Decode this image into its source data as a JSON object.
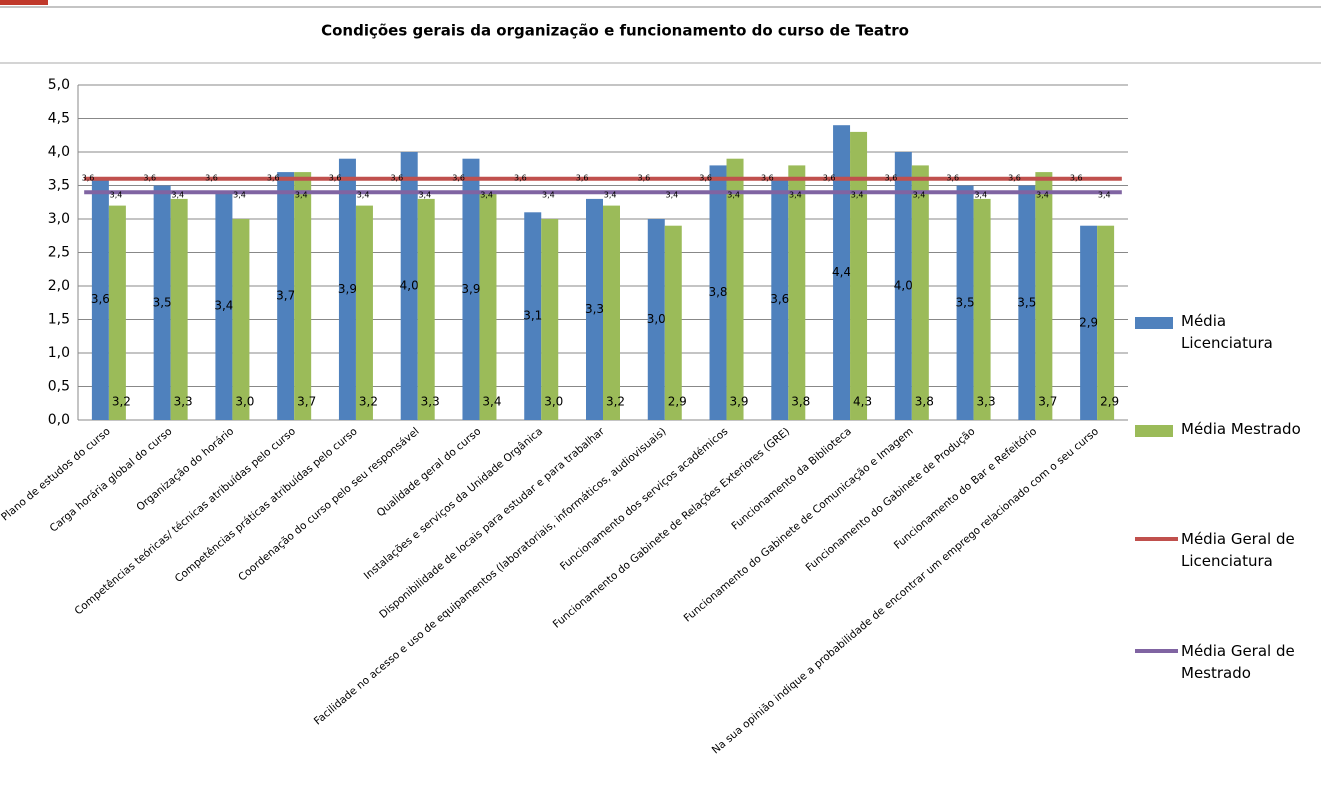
{
  "chart_data": {
    "type": "bar",
    "title": "Condições gerais da organização e funcionamento do curso de Teatro",
    "categories": [
      "Plano de estudos do curso",
      "Carga horária global do curso",
      "Organização do horário",
      "Competências teóricas/ técnicas atribuídas pelo curso",
      "Competências práticas atribuídas pelo curso",
      "Coordenação do curso pelo seu responsável",
      "Qualidade geral do curso",
      "Instalações e serviços da Unidade Orgânica",
      "Disponibilidade de locais para estudar e para trabalhar",
      "Facilidade no acesso e uso de equipamentos (laboratoriais, informáticos, audiovisuais)",
      "Funcionamento dos serviços académicos",
      "Funcionamento do Gabinete de Relações Exteriores (GRE)",
      "Funcionamento da Biblioteca",
      "Funcionamento do Gabinete de Comunicação e Imagem",
      "Funcionamento do Gabinete de Produção",
      "Funcionamento do Bar e Refeitório",
      "Na sua opinião indique a probabilidade de encontrar um emprego relacionado com o seu curso"
    ],
    "series": [
      {
        "name": "Média Licenciatura",
        "type": "bar",
        "color": "#4f81bd",
        "values": [
          3.6,
          3.5,
          3.4,
          3.7,
          3.9,
          4.0,
          3.9,
          3.1,
          3.3,
          3.0,
          3.8,
          3.6,
          4.4,
          4.0,
          3.5,
          3.5,
          2.9
        ],
        "value_labels": [
          "3,6",
          "3,5",
          "3,4",
          "3,7",
          "3,9",
          "4,0",
          "3,9",
          "3,1",
          "3,3",
          "3,0",
          "3,8",
          "3,6",
          "4,4",
          "4,0",
          "3,5",
          "3,5",
          "2,9"
        ]
      },
      {
        "name": "Média Mestrado",
        "type": "bar",
        "color": "#9bbb59",
        "values": [
          3.2,
          3.3,
          3.0,
          3.7,
          3.2,
          3.3,
          3.4,
          3.0,
          3.2,
          2.9,
          3.9,
          3.8,
          4.3,
          3.8,
          3.3,
          3.7,
          2.9
        ],
        "value_labels": [
          "3,2",
          "3,3",
          "3,0",
          "3,7",
          "3,2",
          "3,3",
          "3,4",
          "3,0",
          "3,2",
          "2,9",
          "3,9",
          "3,8",
          "4,3",
          "3,8",
          "3,3",
          "3,7",
          "2,9"
        ]
      },
      {
        "name": "Média Geral de Licenciatura",
        "type": "line",
        "color": "#c0504d",
        "values": [
          3.6,
          3.6,
          3.6,
          3.6,
          3.6,
          3.6,
          3.6,
          3.6,
          3.6,
          3.6,
          3.6,
          3.6,
          3.6,
          3.6,
          3.6,
          3.6,
          3.6
        ],
        "value_labels": [
          "3,6",
          "3,6",
          "3,6",
          "3,6",
          "3,6",
          "3,6",
          "3,6",
          "3,6",
          "3,6",
          "3,6",
          "3,6",
          "3,6",
          "3,6",
          "3,6",
          "3,6",
          "3,6",
          "3,6"
        ]
      },
      {
        "name": "Média Geral de Mestrado",
        "type": "line",
        "color": "#8064a2",
        "values": [
          3.4,
          3.4,
          3.4,
          3.4,
          3.4,
          3.4,
          3.4,
          3.4,
          3.4,
          3.4,
          3.4,
          3.4,
          3.4,
          3.4,
          3.4,
          3.4,
          3.4
        ],
        "value_labels": [
          "3,4",
          "3,4",
          "3,4",
          "3,4",
          "3,4",
          "3,4",
          "3,4",
          "3,4",
          "3,4",
          "3,4",
          "3,4",
          "3,4",
          "3,4",
          "3,4",
          "3,4",
          "3,4",
          "3,4"
        ]
      }
    ],
    "ylim": [
      0,
      5
    ],
    "yticks": [
      {
        "value": 0,
        "label": "0,0"
      },
      {
        "value": 0.5,
        "label": "0,5"
      },
      {
        "value": 1,
        "label": "1,0"
      },
      {
        "value": 1.5,
        "label": "1,5"
      },
      {
        "value": 2,
        "label": "2,0"
      },
      {
        "value": 2.5,
        "label": "2,5"
      },
      {
        "value": 3,
        "label": "3,0"
      },
      {
        "value": 3.5,
        "label": "3,5"
      },
      {
        "value": 4,
        "label": "4,0"
      },
      {
        "value": 4.5,
        "label": "4,5"
      },
      {
        "value": 5,
        "label": "5,0"
      }
    ],
    "grid": true,
    "legend": "right"
  }
}
